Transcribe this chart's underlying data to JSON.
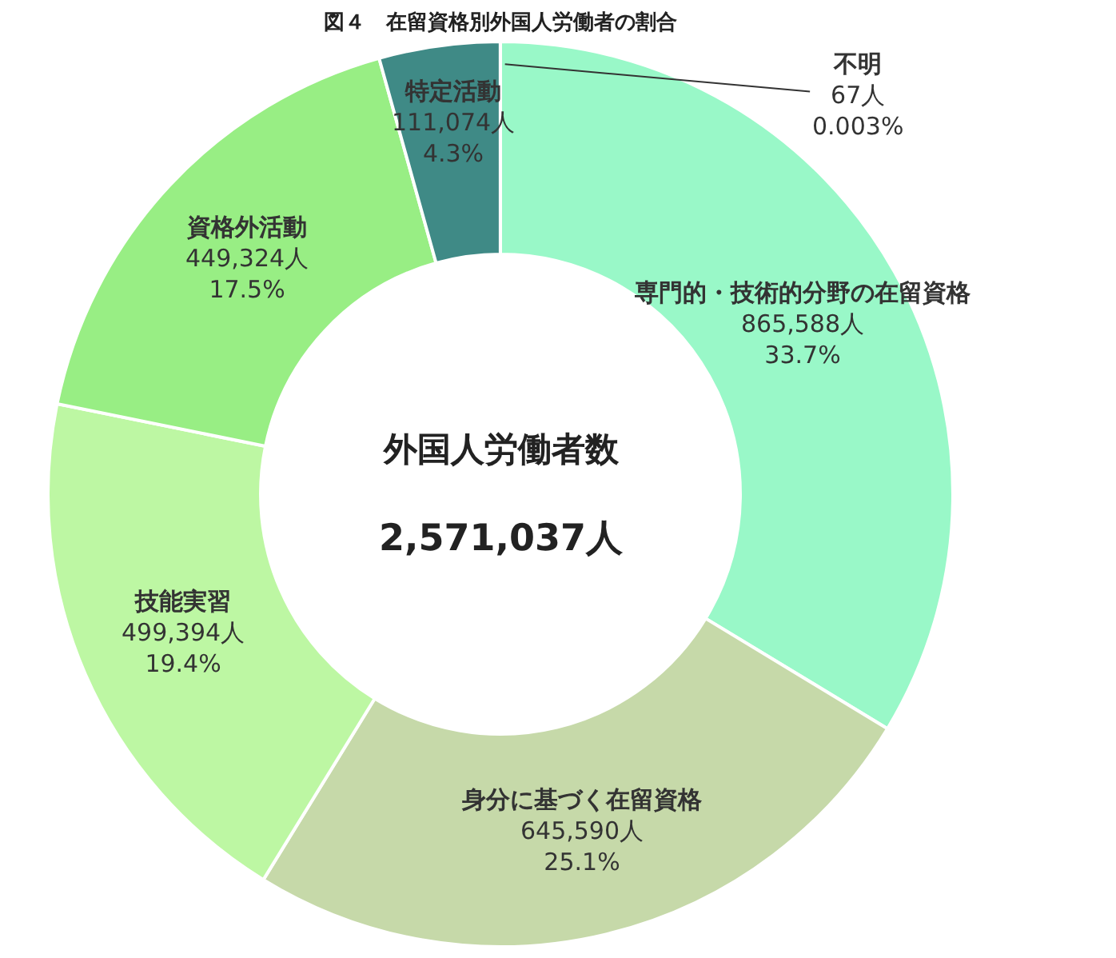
{
  "chart_data": {
    "type": "donut",
    "title": "図４　在留資格別外国人労働者の割合",
    "categories": [
      "専門的・技術的分野の在留資格",
      "身分に基づく在留資格",
      "技能実習",
      "資格外活動",
      "特定活動",
      "不明"
    ],
    "values": [
      865588,
      645590,
      499394,
      449324,
      111074,
      67
    ],
    "colors": [
      "#99f8c8",
      "#c6d9a9",
      "#bdf7a3",
      "#98ee84",
      "#3f8a86",
      "#ffffff"
    ],
    "value_labels": [
      "865,588人\n33.7%",
      "645,590人\n25.1%",
      "499,394人\n19.4%",
      "449,324人\n17.5%",
      "111,074人\n4.3%",
      "67人\n0.003%"
    ],
    "annotations": [
      "外国人労働者数",
      "2,571,037人"
    ],
    "legend": false
  }
}
